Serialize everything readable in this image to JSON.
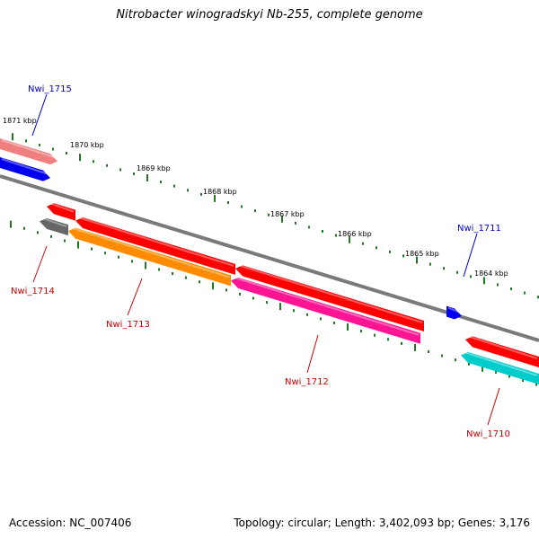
{
  "title": "Nitrobacter winogradskyi Nb-255, complete genome",
  "footer": {
    "accession": "Accession: NC_007406",
    "topology": "Topology: circular; Length: 3,402,093 bp; Genes: 3,176"
  },
  "colors": {
    "backbone": "#7a7a7a",
    "tick": "#227722",
    "label_forward": "#0000cc",
    "label_reverse": "#cc0000"
  },
  "kbp_labels": [
    "1871 kbp",
    "1870 kbp",
    "1869 kbp",
    "1868 kbp",
    "1867 kbp",
    "1866 kbp",
    "1865 kbp",
    "1864 kbp"
  ],
  "genes": [
    {
      "id": "Nwi_1715",
      "strand": "forward",
      "color": "#0000ee"
    },
    {
      "id": "Nwi_1711",
      "strand": "forward",
      "color": "#0000ee"
    },
    {
      "id": "Nwi_1714",
      "strand": "reverse",
      "color": "#666666"
    },
    {
      "id": "Nwi_1713",
      "strand": "reverse",
      "color": "#ff8c00"
    },
    {
      "id": "Nwi_1712",
      "strand": "reverse",
      "color": "#ff1493"
    },
    {
      "id": "Nwi_1710",
      "strand": "reverse",
      "color": "#00cccc"
    }
  ]
}
